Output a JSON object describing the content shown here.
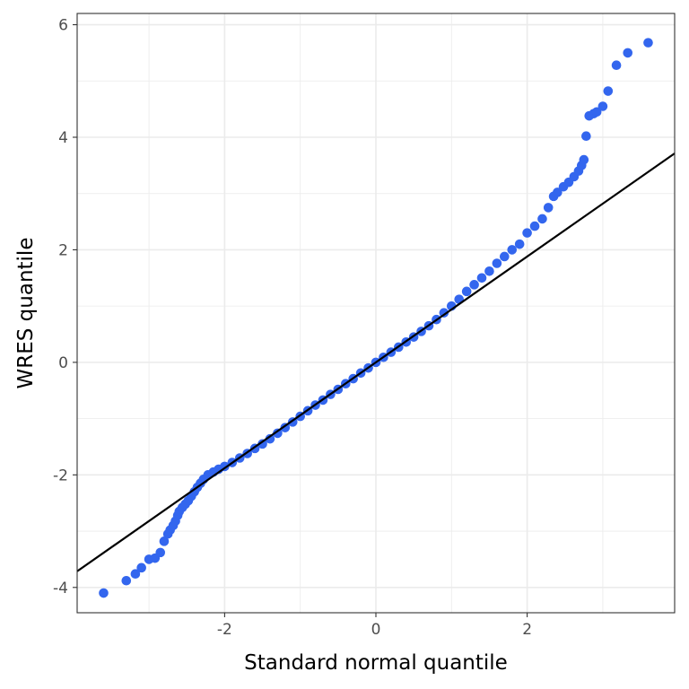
{
  "chart_data": {
    "type": "scatter",
    "xlabel": "Standard normal quantile",
    "ylabel": "WRES quantile",
    "xlim": [
      -3.95,
      3.95
    ],
    "ylim": [
      -4.45,
      6.2
    ],
    "x_ticks": [
      -2,
      0,
      2
    ],
    "x_tick_labels": [
      "-2",
      "0",
      "2"
    ],
    "y_ticks": [
      -4,
      -2,
      0,
      2,
      4,
      6
    ],
    "y_tick_labels": [
      "-4",
      "-2",
      "0",
      "2",
      "4",
      "6"
    ],
    "grid": true,
    "colors": {
      "points": "#3366ee",
      "line": "#000000",
      "grid": "#ebebeb"
    },
    "reference_line": {
      "intercept": 0.0,
      "slope": 0.94
    },
    "points": [
      [
        -3.6,
        -4.1
      ],
      [
        -3.3,
        -3.88
      ],
      [
        -3.18,
        -3.76
      ],
      [
        -3.1,
        -3.65
      ],
      [
        -3.0,
        -3.5
      ],
      [
        -2.92,
        -3.48
      ],
      [
        -2.85,
        -3.38
      ],
      [
        -2.8,
        -3.18
      ],
      [
        -2.75,
        -3.05
      ],
      [
        -2.72,
        -2.98
      ],
      [
        -2.68,
        -2.9
      ],
      [
        -2.65,
        -2.82
      ],
      [
        -2.62,
        -2.72
      ],
      [
        -2.6,
        -2.65
      ],
      [
        -2.56,
        -2.58
      ],
      [
        -2.52,
        -2.52
      ],
      [
        -2.48,
        -2.46
      ],
      [
        -2.44,
        -2.38
      ],
      [
        -2.4,
        -2.3
      ],
      [
        -2.36,
        -2.22
      ],
      [
        -2.32,
        -2.15
      ],
      [
        -2.28,
        -2.08
      ],
      [
        -2.22,
        -2.0
      ],
      [
        -2.15,
        -1.95
      ],
      [
        -2.08,
        -1.9
      ],
      [
        -2.0,
        -1.85
      ],
      [
        -1.9,
        -1.78
      ],
      [
        -1.8,
        -1.7
      ],
      [
        -1.7,
        -1.62
      ],
      [
        -1.6,
        -1.53
      ],
      [
        -1.5,
        -1.45
      ],
      [
        -1.4,
        -1.36
      ],
      [
        -1.3,
        -1.26
      ],
      [
        -1.2,
        -1.16
      ],
      [
        -1.1,
        -1.06
      ],
      [
        -1.0,
        -0.96
      ],
      [
        -0.9,
        -0.86
      ],
      [
        -0.8,
        -0.76
      ],
      [
        -0.7,
        -0.67
      ],
      [
        -0.6,
        -0.57
      ],
      [
        -0.5,
        -0.48
      ],
      [
        -0.4,
        -0.38
      ],
      [
        -0.3,
        -0.29
      ],
      [
        -0.2,
        -0.19
      ],
      [
        -0.1,
        -0.1
      ],
      [
        0.0,
        0.0
      ],
      [
        0.1,
        0.09
      ],
      [
        0.2,
        0.18
      ],
      [
        0.3,
        0.27
      ],
      [
        0.4,
        0.36
      ],
      [
        0.5,
        0.45
      ],
      [
        0.6,
        0.55
      ],
      [
        0.7,
        0.65
      ],
      [
        0.8,
        0.76
      ],
      [
        0.9,
        0.88
      ],
      [
        1.0,
        1.0
      ],
      [
        1.1,
        1.12
      ],
      [
        1.2,
        1.26
      ],
      [
        1.3,
        1.38
      ],
      [
        1.4,
        1.5
      ],
      [
        1.5,
        1.62
      ],
      [
        1.6,
        1.76
      ],
      [
        1.7,
        1.88
      ],
      [
        1.8,
        2.0
      ],
      [
        1.9,
        2.1
      ],
      [
        2.0,
        2.3
      ],
      [
        2.1,
        2.42
      ],
      [
        2.2,
        2.55
      ],
      [
        2.28,
        2.75
      ],
      [
        2.35,
        2.95
      ],
      [
        2.4,
        3.02
      ],
      [
        2.48,
        3.12
      ],
      [
        2.55,
        3.2
      ],
      [
        2.62,
        3.3
      ],
      [
        2.68,
        3.4
      ],
      [
        2.72,
        3.5
      ],
      [
        2.75,
        3.6
      ],
      [
        2.78,
        4.02
      ],
      [
        2.82,
        4.38
      ],
      [
        2.88,
        4.42
      ],
      [
        2.92,
        4.45
      ],
      [
        3.0,
        4.55
      ],
      [
        3.07,
        4.82
      ],
      [
        3.18,
        5.28
      ],
      [
        3.33,
        5.5
      ],
      [
        3.6,
        5.68
      ]
    ]
  }
}
